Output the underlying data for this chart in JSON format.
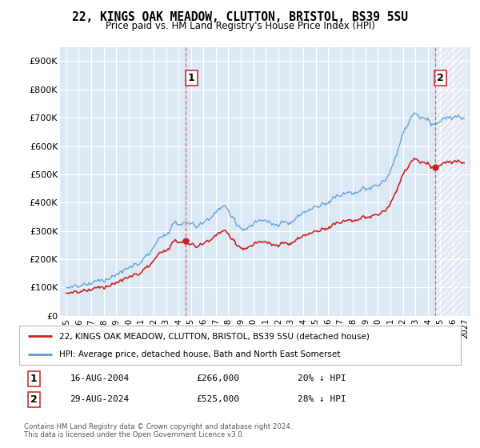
{
  "title": "22, KINGS OAK MEADOW, CLUTTON, BRISTOL, BS39 5SU",
  "subtitle": "Price paid vs. HM Land Registry's House Price Index (HPI)",
  "line1_color": "#cc2222",
  "line2_color": "#5b9bd5",
  "fill_color": "#dce9f5",
  "hatch_color": "#aaaaaa",
  "sale1_price": 266000,
  "sale2_price": 525000,
  "legend1": "22, KINGS OAK MEADOW, CLUTTON, BRISTOL, BS39 5SU (detached house)",
  "legend2": "HPI: Average price, detached house, Bath and North East Somerset",
  "footer1": "Contains HM Land Registry data © Crown copyright and database right 2024.",
  "footer2": "This data is licensed under the Open Government Licence v3.0.",
  "ytick_labels": [
    "£0",
    "£100K",
    "£200K",
    "£300K",
    "£400K",
    "£500K",
    "£600K",
    "£700K",
    "£800K",
    "£900K"
  ],
  "yticks": [
    0,
    100000,
    200000,
    300000,
    400000,
    500000,
    600000,
    700000,
    800000,
    900000
  ]
}
